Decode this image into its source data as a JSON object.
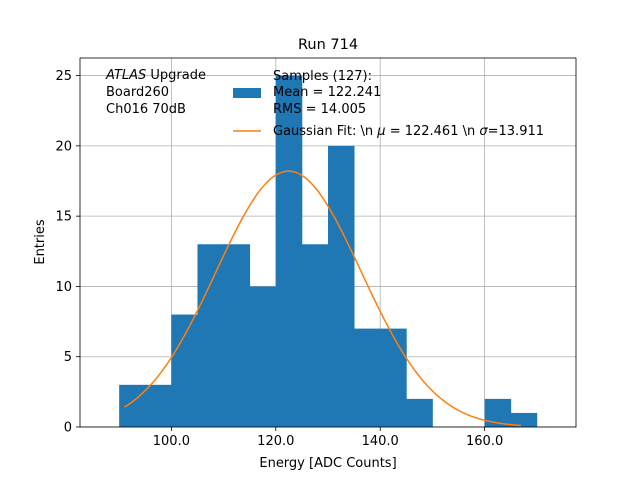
{
  "chart_data": {
    "type": "bar",
    "title": "Run 714",
    "xlabel": "Energy [ADC Counts]",
    "ylabel": "Entries",
    "xlim": [
      82.5,
      177.5
    ],
    "ylim": [
      0,
      26.25
    ],
    "xticks": [
      100,
      120,
      140,
      160
    ],
    "xtick_labels": [
      "100.0",
      "120.0",
      "140.0",
      "160.0"
    ],
    "yticks": [
      0,
      5,
      10,
      15,
      20,
      25
    ],
    "ytick_labels": [
      "0",
      "5",
      "10",
      "15",
      "20",
      "25"
    ],
    "grid": true,
    "annotation": {
      "prefix_italic": "ATLAS",
      "line1_rest": " Upgrade",
      "line2": " Board260",
      "line3": " Ch016 70dB"
    },
    "legend": {
      "placement": "top-right",
      "hist_label_lines": [
        "Samples (127):",
        " Mean = 122.241",
        " RMS = 14.005"
      ],
      "fit_label": {
        "prefix": "Gaussian Fit: \\n ",
        "mu_symbol": "μ",
        "mu_text": " = 122.461 \\n ",
        "sigma_symbol": "σ",
        "sigma_text": "=13.911"
      }
    },
    "histogram": {
      "name": "Samples (127):",
      "color": "#1f77b4",
      "bin_edges": [
        90,
        95,
        100,
        105,
        110,
        115,
        120,
        125,
        130,
        135,
        140,
        145,
        150,
        155,
        160,
        165,
        170
      ],
      "counts": [
        3,
        3,
        8,
        13,
        13,
        10,
        25,
        13,
        20,
        7,
        7,
        2,
        0,
        0,
        2,
        1
      ]
    },
    "fit": {
      "name": "Gaussian Fit",
      "color": "#ff7f0e",
      "amplitude": 18.2,
      "mu": 122.461,
      "sigma": 13.911,
      "x_range": [
        91,
        167
      ]
    }
  }
}
